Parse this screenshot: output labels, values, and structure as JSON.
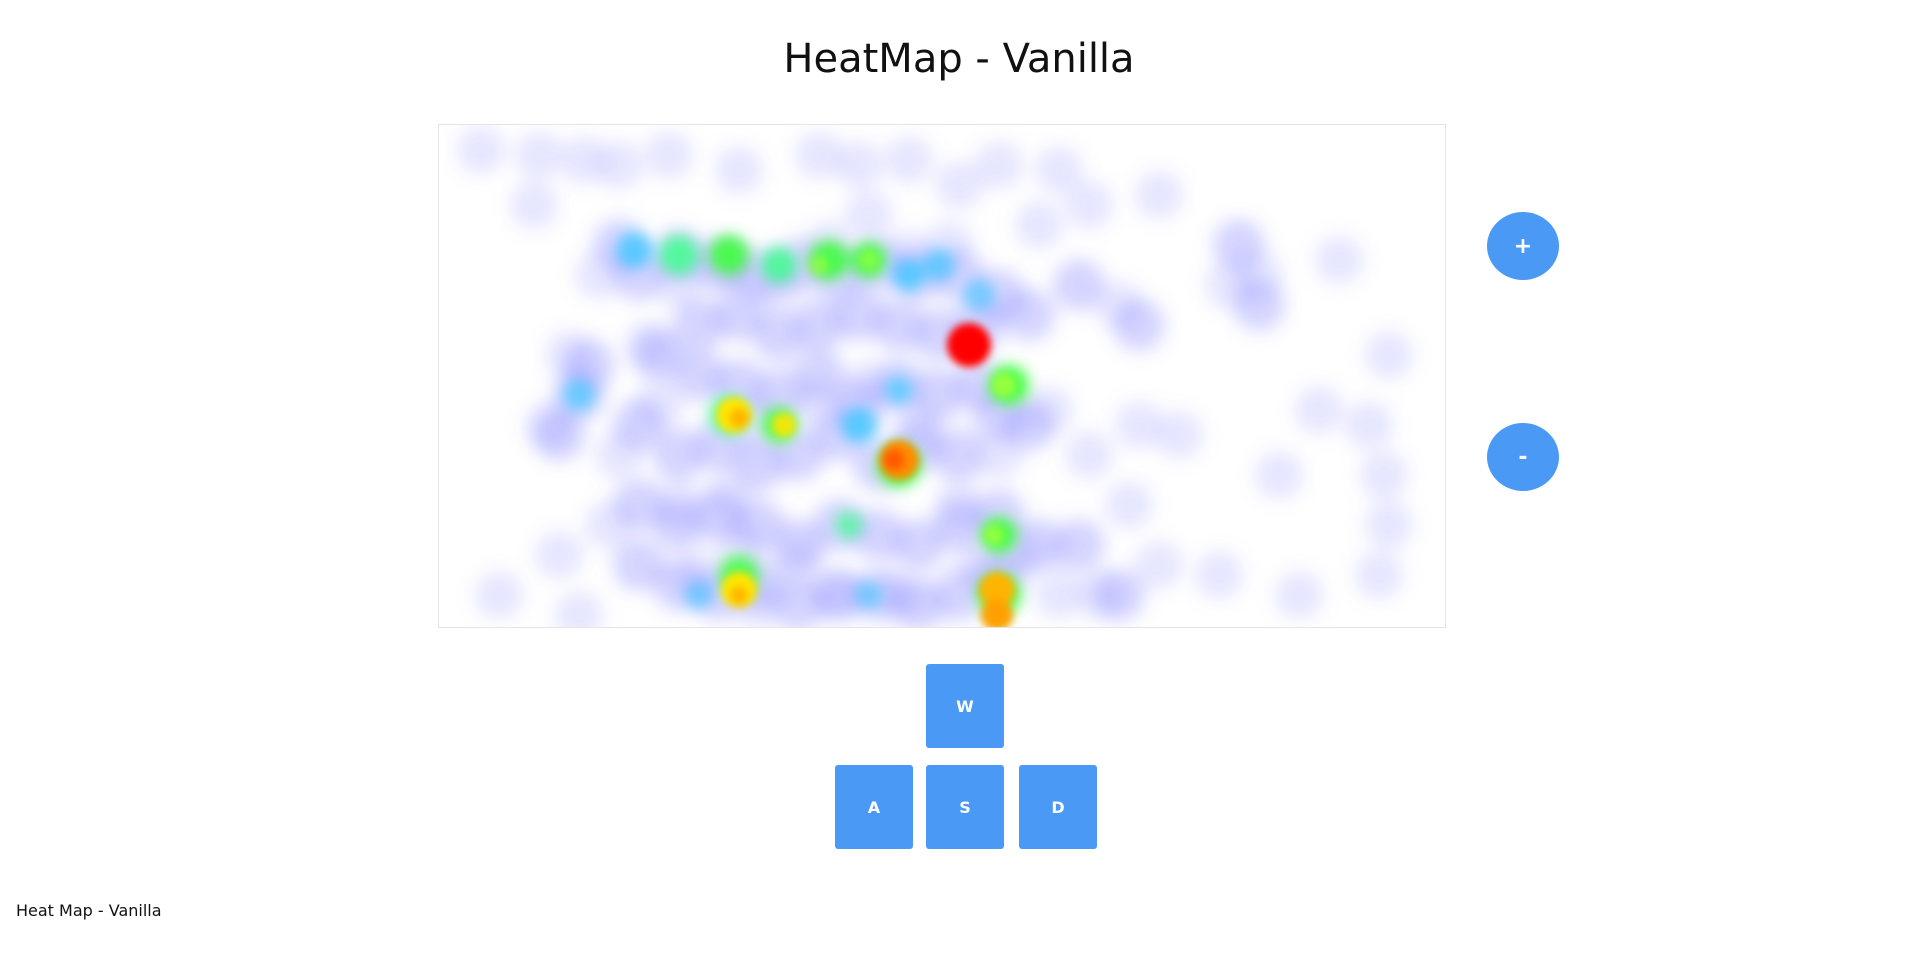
{
  "page": {
    "title": "HeatMap - Vanilla",
    "footer": "Heat Map - Vanilla"
  },
  "zoom": {
    "in_label": "+",
    "out_label": "-"
  },
  "keys": {
    "w": "W",
    "a": "A",
    "s": "S",
    "d": "D"
  },
  "colors": {
    "button": "#4a9af5",
    "heat_low": "#8c8cff",
    "heat_mid": "#3cff3c",
    "heat_high": "#ff0000"
  }
}
